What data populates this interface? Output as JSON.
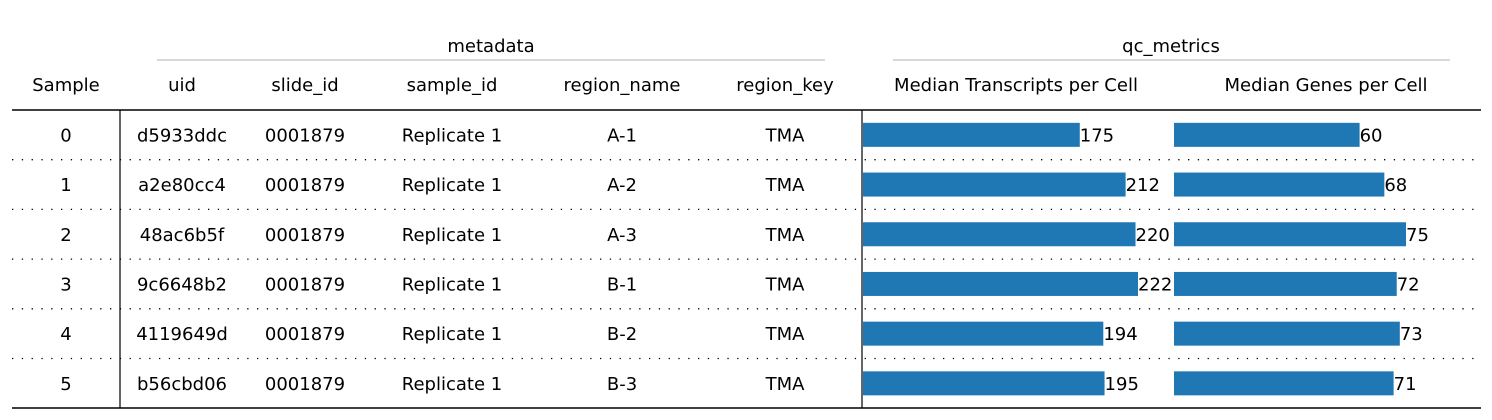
{
  "chart_data": {
    "type": "table",
    "groups": [
      {
        "label": "metadata",
        "columns": [
          "uid",
          "slide_id",
          "sample_id",
          "region_name",
          "region_key"
        ]
      },
      {
        "label": "qc_metrics",
        "columns": [
          "Median Transcripts per Cell",
          "Median Genes per Cell"
        ]
      }
    ],
    "index_header": "Sample",
    "columns": [
      "uid",
      "slide_id",
      "sample_id",
      "region_name",
      "region_key",
      "Median Transcripts per Cell",
      "Median Genes per Cell"
    ],
    "rows": [
      {
        "sample": "0",
        "uid": "d5933ddc",
        "slide_id": "0001879",
        "sample_id": "Replicate 1",
        "region_name": "A-1",
        "region_key": "TMA",
        "transcripts": 175,
        "genes": 60
      },
      {
        "sample": "1",
        "uid": "a2e80cc4",
        "slide_id": "0001879",
        "sample_id": "Replicate 1",
        "region_name": "A-2",
        "region_key": "TMA",
        "transcripts": 212,
        "genes": 68
      },
      {
        "sample": "2",
        "uid": "48ac6b5f",
        "slide_id": "0001879",
        "sample_id": "Replicate 1",
        "region_name": "A-3",
        "region_key": "TMA",
        "transcripts": 220,
        "genes": 75
      },
      {
        "sample": "3",
        "uid": "9c6648b2",
        "slide_id": "0001879",
        "sample_id": "Replicate 1",
        "region_name": "B-1",
        "region_key": "TMA",
        "transcripts": 222,
        "genes": 72
      },
      {
        "sample": "4",
        "uid": "4119649d",
        "slide_id": "0001879",
        "sample_id": "Replicate 1",
        "region_name": "B-2",
        "region_key": "TMA",
        "transcripts": 194,
        "genes": 73
      },
      {
        "sample": "5",
        "uid": "b56cbd06",
        "slide_id": "0001879",
        "sample_id": "Replicate 1",
        "region_name": "B-3",
        "region_key": "TMA",
        "transcripts": 195,
        "genes": 71
      }
    ],
    "bar_max": {
      "transcripts": 222,
      "genes": 75
    },
    "bar_color": "#1f77b4",
    "grid": false
  }
}
